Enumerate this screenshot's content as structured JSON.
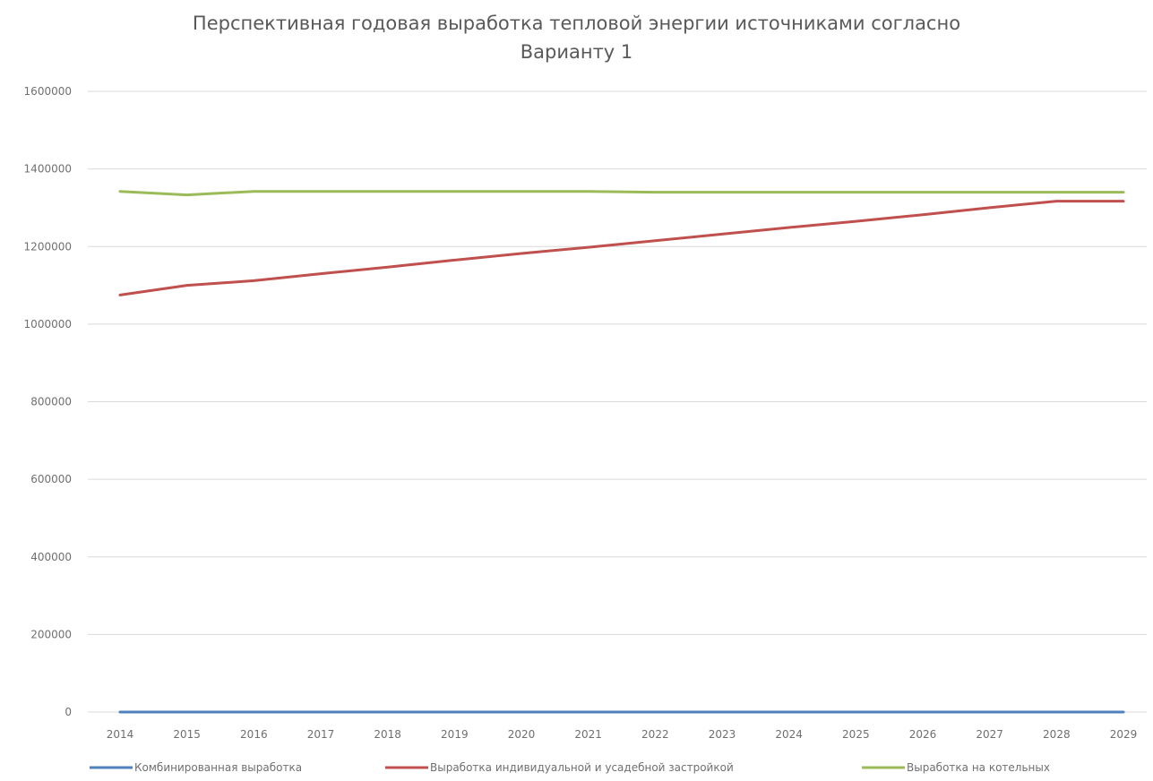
{
  "chart_data": {
    "type": "line",
    "title_line1": "Перспективная годовая выработка тепловой энергии источниками согласно",
    "title_line2": "Варианту 1",
    "categories": [
      "2014",
      "2015",
      "2016",
      "2017",
      "2018",
      "2019",
      "2020",
      "2021",
      "2022",
      "2023",
      "2024",
      "2025",
      "2026",
      "2027",
      "2028",
      "2029"
    ],
    "ylim": [
      0,
      1600000
    ],
    "yticks": [
      0,
      200000,
      400000,
      600000,
      800000,
      1000000,
      1200000,
      1400000,
      1600000
    ],
    "ytick_labels": [
      "0",
      "200000",
      "400000",
      "600000",
      "800000",
      "1000000",
      "1200000",
      "1400000",
      "1600000"
    ],
    "grid": "horizontal",
    "legend_position": "bottom",
    "series": [
      {
        "name": "Комбинированная выработка",
        "color": "#4f81bd",
        "values": [
          0,
          0,
          0,
          0,
          0,
          0,
          0,
          0,
          0,
          0,
          0,
          0,
          0,
          0,
          0,
          0
        ]
      },
      {
        "name": "Выработка индивидуальной и усадебной застройкой",
        "color": "#c0504d",
        "values": [
          1075000,
          1100000,
          1112000,
          1130000,
          1147000,
          1165000,
          1182000,
          1198000,
          1215000,
          1232000,
          1249000,
          1265000,
          1282000,
          1300000,
          1317000,
          1317000
        ]
      },
      {
        "name": "Выработка на котельных",
        "color": "#9bbb59",
        "values": [
          1342000,
          1333000,
          1342000,
          1342000,
          1342000,
          1342000,
          1342000,
          1342000,
          1340000,
          1340000,
          1340000,
          1340000,
          1340000,
          1340000,
          1340000,
          1340000
        ]
      }
    ]
  }
}
